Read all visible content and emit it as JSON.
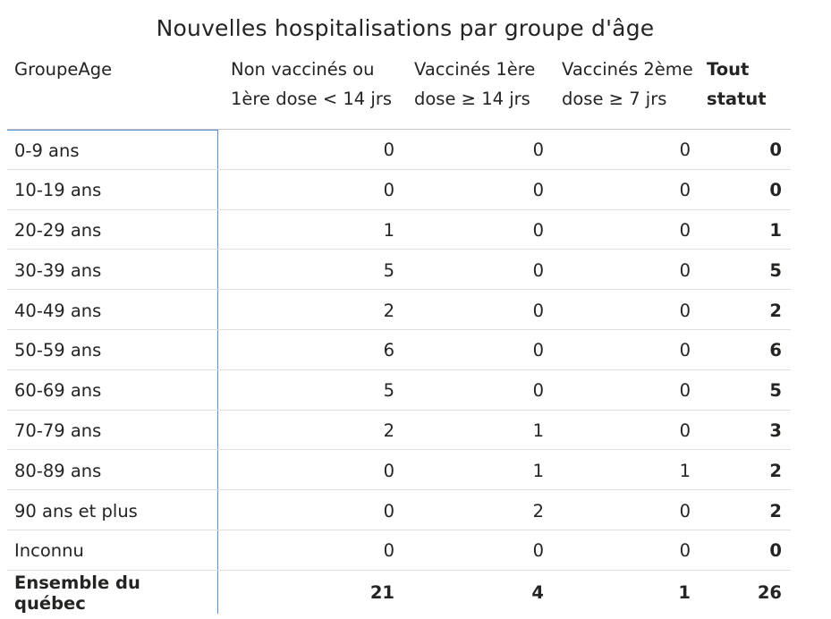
{
  "title": "Nouvelles hospitalisations par groupe d'âge",
  "headers": {
    "group": "GroupeAge",
    "col1_line1": "Non vaccinés ou",
    "col1_line2": "1ère dose < 14 jrs",
    "col2_line1": "Vaccinés 1ère",
    "col2_line2": "dose ≥ 14 jrs",
    "col3_line1": "Vaccinés 2ème",
    "col3_line2": "dose ≥ 7 jrs",
    "total_line1": "Tout",
    "total_line2": "statut"
  },
  "rows": [
    {
      "label": "0-9 ans",
      "c1": "0",
      "c2": "0",
      "c3": "0",
      "total": "0"
    },
    {
      "label": "10-19 ans",
      "c1": "0",
      "c2": "0",
      "c3": "0",
      "total": "0"
    },
    {
      "label": "20-29 ans",
      "c1": "1",
      "c2": "0",
      "c3": "0",
      "total": "1"
    },
    {
      "label": "30-39 ans",
      "c1": "5",
      "c2": "0",
      "c3": "0",
      "total": "5"
    },
    {
      "label": "40-49 ans",
      "c1": "2",
      "c2": "0",
      "c3": "0",
      "total": "2"
    },
    {
      "label": "50-59 ans",
      "c1": "6",
      "c2": "0",
      "c3": "0",
      "total": "6"
    },
    {
      "label": "60-69 ans",
      "c1": "5",
      "c2": "0",
      "c3": "0",
      "total": "5"
    },
    {
      "label": "70-79 ans",
      "c1": "2",
      "c2": "1",
      "c3": "0",
      "total": "3"
    },
    {
      "label": "80-89 ans",
      "c1": "0",
      "c2": "1",
      "c3": "1",
      "total": "2"
    },
    {
      "label": "90 ans et plus",
      "c1": "0",
      "c2": "2",
      "c3": "0",
      "total": "2"
    },
    {
      "label": "Inconnu",
      "c1": "0",
      "c2": "0",
      "c3": "0",
      "total": "0"
    }
  ],
  "grand_total": {
    "label": "Ensemble du québec",
    "c1": "21",
    "c2": "4",
    "c3": "1",
    "total": "26"
  },
  "colors": {
    "text": "#252423",
    "row_divider": "#e1dfdd",
    "accent_border": "#5b8fd6"
  }
}
